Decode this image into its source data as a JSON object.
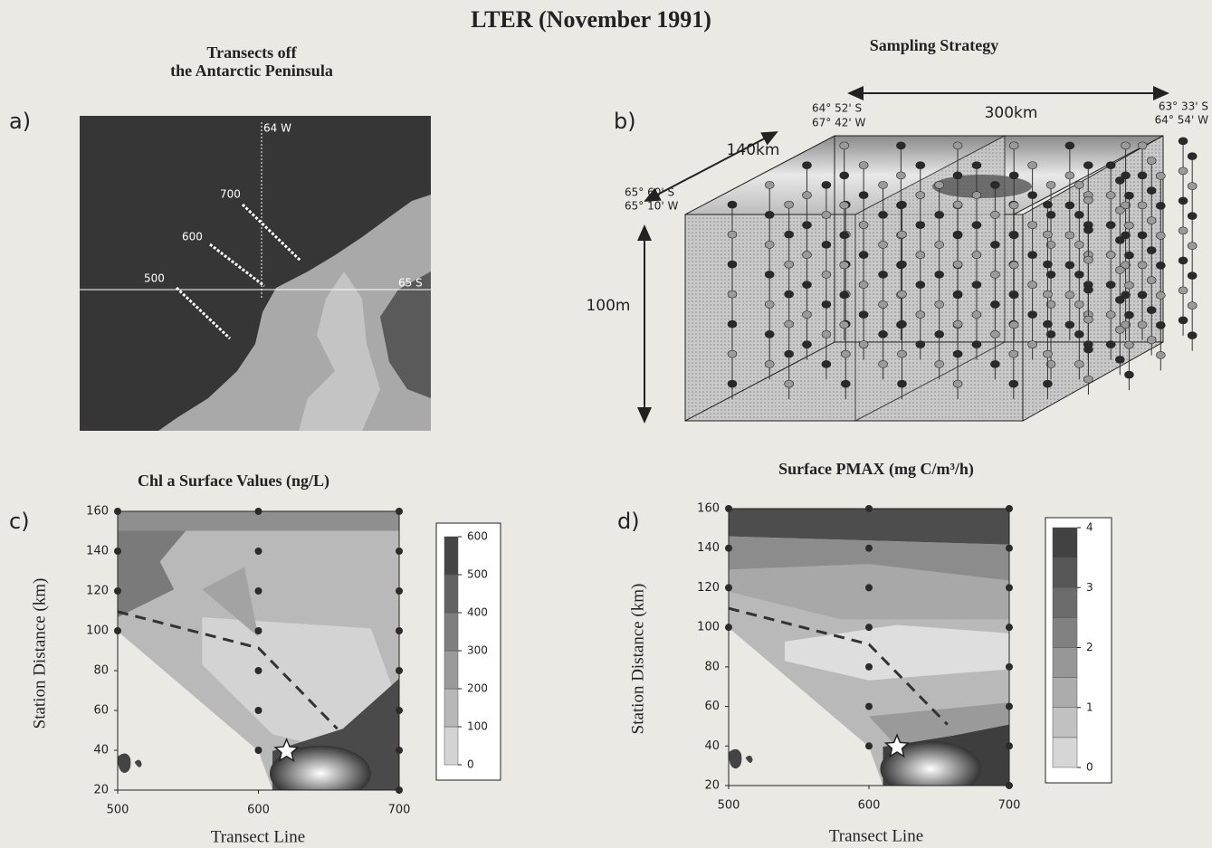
{
  "title": "LTER (November 1991)",
  "panel_a": {
    "label": "a)",
    "title": [
      "Transects off",
      "the Antarctic Peninsula"
    ],
    "longitude_label": "64 W",
    "latitude_label": "65 S",
    "transects": [
      "700",
      "600",
      "500"
    ]
  },
  "panel_b": {
    "label": "b)",
    "title": "Sampling Strategy",
    "length_label": "300km",
    "width_label": "140km",
    "depth_label": "100m",
    "corners": [
      [
        "64° 52' S",
        "67° 42' W"
      ],
      [
        "63° 33' S",
        "64° 54' W"
      ],
      [
        "65° 60' S",
        "65° 10' W"
      ]
    ]
  },
  "panel_c": {
    "label": "c)",
    "title": "Chl a Surface Values (ng/L)",
    "xlabel": "Transect Line",
    "ylabel": "Station Distance (km)",
    "xlim": [
      500,
      700
    ],
    "xticks": [
      500,
      600,
      700
    ],
    "ylim": [
      20,
      160
    ],
    "yticks": [
      20,
      40,
      60,
      80,
      100,
      120,
      140,
      160
    ],
    "colorbar_lim": [
      0,
      600
    ],
    "colorbar_ticks": [
      0,
      100,
      200,
      300,
      400,
      500,
      600
    ],
    "stations": {
      "x": [
        500,
        500,
        500,
        500,
        600,
        600,
        600,
        600,
        600,
        600,
        600,
        700,
        700,
        700,
        700,
        700,
        700,
        700,
        700
      ],
      "y": [
        100,
        120,
        140,
        160,
        40,
        60,
        80,
        100,
        120,
        140,
        160,
        20,
        40,
        60,
        80,
        100,
        120,
        140,
        160
      ]
    }
  },
  "panel_d": {
    "label": "d)",
    "title": "Surface PMAX (mg C/m³/h)",
    "xlabel": "Transect Line",
    "ylabel": "Station Distance (km)",
    "xlim": [
      500,
      700
    ],
    "xticks": [
      500,
      600,
      700
    ],
    "ylim": [
      20,
      160
    ],
    "yticks": [
      20,
      40,
      60,
      80,
      100,
      120,
      140,
      160
    ],
    "colorbar_lim": [
      0,
      4
    ],
    "colorbar_ticks": [
      0,
      1,
      2,
      3,
      4
    ],
    "stations": {
      "x": [
        500,
        500,
        500,
        500,
        600,
        600,
        600,
        600,
        600,
        600,
        600,
        700,
        700,
        700,
        700,
        700,
        700,
        700,
        700
      ],
      "y": [
        100,
        120,
        140,
        160,
        40,
        60,
        80,
        100,
        120,
        140,
        160,
        20,
        40,
        60,
        80,
        100,
        120,
        140,
        160
      ]
    }
  }
}
